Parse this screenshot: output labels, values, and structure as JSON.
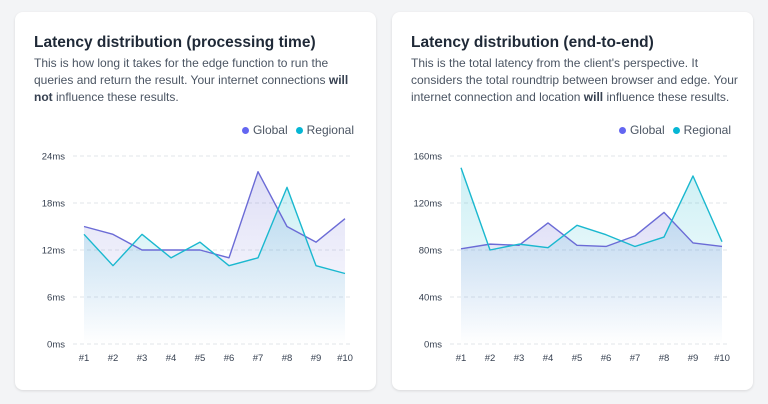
{
  "cards": [
    {
      "title": "Latency distribution (processing time)",
      "description": [
        {
          "text": "This is how long it takes for the edge function to run the queries and return the result. Your internet connections ",
          "bold": false
        },
        {
          "text": "will not",
          "bold": true
        },
        {
          "text": " influence these results.",
          "bold": false
        }
      ]
    },
    {
      "title": "Latency distribution (end-to-end)",
      "description": [
        {
          "text": "This is the total latency from the client's perspective. It considers the total roundtrip between browser and edge. Your internet connection and location ",
          "bold": false
        },
        {
          "text": "will",
          "bold": true
        },
        {
          "text": " influence these results.",
          "bold": false
        }
      ]
    }
  ],
  "legend": [
    {
      "name": "Global",
      "color": "#6366f1"
    },
    {
      "name": "Regional",
      "color": "#06b6d4"
    }
  ],
  "chart_data": [
    {
      "type": "area",
      "categories": [
        "#1",
        "#2",
        "#3",
        "#4",
        "#5",
        "#6",
        "#7",
        "#8",
        "#9",
        "#10"
      ],
      "y_ticks": [
        "0ms",
        "6ms",
        "12ms",
        "18ms",
        "24ms"
      ],
      "ylim": [
        0,
        24
      ],
      "grid": "horizontal dashed",
      "legend_position": "top-right",
      "series": [
        {
          "name": "Global",
          "color": "#6b6bd6",
          "values": [
            15,
            14,
            12,
            12,
            12,
            11,
            22,
            15,
            13,
            16
          ]
        },
        {
          "name": "Regional",
          "color": "#1ab8cf",
          "values": [
            14,
            10,
            14,
            11,
            13,
            10,
            11,
            20,
            10,
            9
          ]
        }
      ]
    },
    {
      "type": "area",
      "categories": [
        "#1",
        "#2",
        "#3",
        "#4",
        "#5",
        "#6",
        "#7",
        "#8",
        "#9",
        "#10"
      ],
      "y_ticks": [
        "0ms",
        "40ms",
        "80ms",
        "120ms",
        "160ms"
      ],
      "ylim": [
        0,
        160
      ],
      "grid": "horizontal dashed",
      "legend_position": "top-right",
      "series": [
        {
          "name": "Global",
          "color": "#6b6bd6",
          "values": [
            81,
            85,
            84,
            103,
            84,
            83,
            92,
            112,
            86,
            83
          ]
        },
        {
          "name": "Regional",
          "color": "#1ab8cf",
          "values": [
            150,
            80,
            85,
            82,
            101,
            93,
            83,
            91,
            143,
            87
          ]
        }
      ]
    }
  ]
}
